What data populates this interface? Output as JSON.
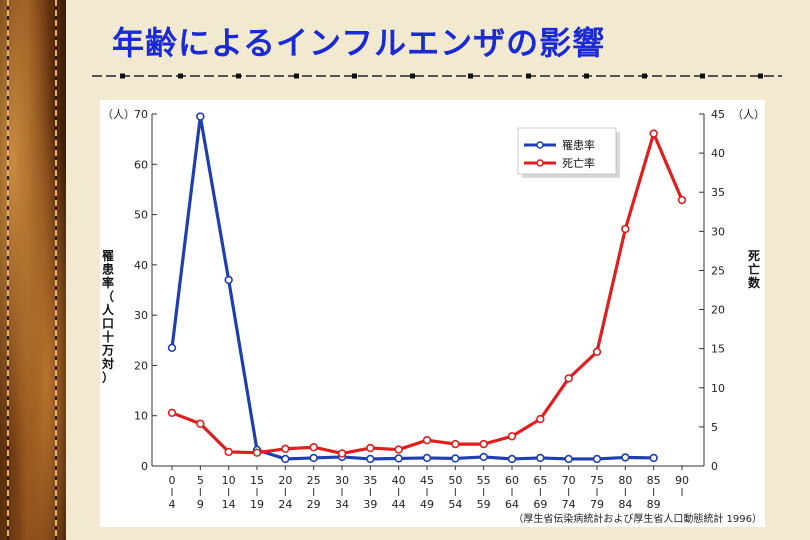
{
  "slide": {
    "title": "年齢によるインフルエンザの影響"
  },
  "colors": {
    "title": "#1a2ad6",
    "morbidity": "#1f3fb0",
    "mortality": "#e01e1e",
    "background": "#f1ead0"
  },
  "chart_data": {
    "type": "line",
    "left_unit": "（人）",
    "right_unit": "（人）",
    "ylabel_left": "罹患率（人口十万対）",
    "ylabel_right": "死亡数",
    "ylim_left": [
      0,
      70
    ],
    "ylim_right": [
      0,
      45
    ],
    "yticks_left": [
      0,
      10,
      20,
      30,
      40,
      50,
      60,
      70
    ],
    "yticks_right": [
      0,
      5,
      10,
      15,
      20,
      25,
      30,
      35,
      40,
      45
    ],
    "age_start": [
      "0",
      "5",
      "10",
      "15",
      "20",
      "25",
      "30",
      "35",
      "40",
      "45",
      "50",
      "55",
      "60",
      "65",
      "70",
      "75",
      "80",
      "85",
      "90"
    ],
    "age_end": [
      "4",
      "9",
      "14",
      "19",
      "24",
      "29",
      "34",
      "39",
      "44",
      "49",
      "54",
      "59",
      "64",
      "69",
      "74",
      "79",
      "84",
      "89",
      ""
    ],
    "source": "（厚生省伝染病統計および厚生省人口動態統計 1996）",
    "series": [
      {
        "name": "罹患率",
        "axis": "left",
        "values": [
          23.5,
          69.5,
          37,
          3.2,
          1.4,
          1.6,
          1.8,
          1.4,
          1.5,
          1.6,
          1.5,
          1.8,
          1.4,
          1.6,
          1.4,
          1.4,
          1.7,
          1.6,
          null
        ]
      },
      {
        "name": "死亡率",
        "axis": "right",
        "values": [
          6.8,
          5.4,
          1.8,
          1.7,
          2.2,
          2.4,
          1.6,
          2.3,
          2.1,
          3.3,
          2.8,
          2.8,
          3.8,
          6.0,
          11.2,
          14.6,
          30.3,
          42.5,
          34.0
        ]
      }
    ]
  }
}
